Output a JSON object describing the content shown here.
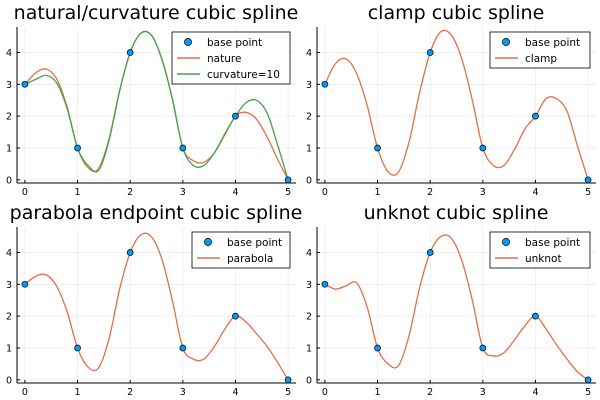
{
  "colors": {
    "base_point": "#009AF9",
    "spline": "#E26F46",
    "curvature": "#3EA44E"
  },
  "chart_data": [
    {
      "type": "line",
      "title": "natural/curvature cubic spline",
      "xlim": [
        -0.15,
        5.15
      ],
      "ylim": [
        -0.1,
        4.8
      ],
      "xticks": [
        "0",
        "1",
        "2",
        "3",
        "4",
        "5"
      ],
      "yticks": [
        "0",
        "1",
        "2",
        "3",
        "4"
      ],
      "grid": true,
      "legend_position": "top-right",
      "scatter": {
        "name": "base point",
        "x": [
          0,
          1,
          2,
          3,
          4,
          5
        ],
        "y": [
          3,
          1,
          4,
          1,
          2,
          0
        ]
      },
      "series": [
        {
          "name": "nature",
          "color_key": "spline",
          "x": [
            0,
            0.2,
            0.4,
            0.6,
            0.8,
            1.0,
            1.2,
            1.4,
            1.6,
            1.8,
            2.0,
            2.2,
            2.4,
            2.6,
            2.8,
            3.0,
            3.2,
            3.4,
            3.6,
            3.8,
            4.0,
            4.2,
            4.4,
            4.6,
            4.8,
            5.0
          ],
          "y": [
            3.0,
            3.35,
            3.48,
            3.18,
            2.3,
            1.0,
            0.38,
            0.35,
            1.3,
            2.8,
            4.0,
            4.6,
            4.55,
            3.8,
            2.55,
            1.0,
            0.6,
            0.55,
            0.85,
            1.42,
            2.0,
            2.12,
            1.9,
            1.35,
            0.65,
            0.0
          ]
        },
        {
          "name": "curvature=10",
          "color_key": "curvature",
          "x": [
            0,
            0.2,
            0.4,
            0.6,
            0.8,
            1.0,
            1.2,
            1.4,
            1.6,
            1.8,
            2.0,
            2.2,
            2.4,
            2.6,
            2.8,
            3.0,
            3.2,
            3.4,
            3.6,
            3.8,
            4.0,
            4.2,
            4.4,
            4.6,
            4.8,
            5.0
          ],
          "y": [
            3.0,
            3.15,
            3.28,
            3.05,
            2.25,
            1.0,
            0.45,
            0.3,
            1.25,
            2.8,
            4.0,
            4.6,
            4.55,
            3.8,
            2.55,
            1.0,
            0.45,
            0.45,
            0.85,
            1.45,
            2.0,
            2.42,
            2.5,
            2.1,
            1.1,
            0.0
          ]
        }
      ]
    },
    {
      "type": "line",
      "title": "clamp cubic spline",
      "xlim": [
        -0.15,
        5.15
      ],
      "ylim": [
        -0.1,
        4.8
      ],
      "xticks": [
        "0",
        "1",
        "2",
        "3",
        "4",
        "5"
      ],
      "yticks": [
        "0",
        "1",
        "2",
        "3",
        "4"
      ],
      "grid": true,
      "legend_position": "top-right",
      "scatter": {
        "name": "base point",
        "x": [
          0,
          1,
          2,
          3,
          4,
          5
        ],
        "y": [
          3,
          1,
          4,
          1,
          2,
          0
        ]
      },
      "series": [
        {
          "name": "clamp",
          "color_key": "spline",
          "x": [
            0,
            0.2,
            0.4,
            0.6,
            0.8,
            1.0,
            1.2,
            1.4,
            1.6,
            1.8,
            2.0,
            2.2,
            2.4,
            2.6,
            2.8,
            3.0,
            3.2,
            3.4,
            3.6,
            3.8,
            4.0,
            4.2,
            4.4,
            4.6,
            4.8,
            5.0
          ],
          "y": [
            3.0,
            3.65,
            3.8,
            3.35,
            2.35,
            1.0,
            0.25,
            0.25,
            1.2,
            2.75,
            4.0,
            4.65,
            4.55,
            3.8,
            2.5,
            1.0,
            0.45,
            0.45,
            0.95,
            1.6,
            2.0,
            2.55,
            2.55,
            2.15,
            1.05,
            0.0
          ]
        }
      ]
    },
    {
      "type": "line",
      "title": "parabola endpoint cubic spline",
      "xlim": [
        -0.15,
        5.15
      ],
      "ylim": [
        -0.1,
        4.8
      ],
      "xticks": [
        "0",
        "1",
        "2",
        "3",
        "4",
        "5"
      ],
      "yticks": [
        "0",
        "1",
        "2",
        "3",
        "4"
      ],
      "grid": true,
      "legend_position": "top-right",
      "scatter": {
        "name": "base point",
        "x": [
          0,
          1,
          2,
          3,
          4,
          5
        ],
        "y": [
          3,
          1,
          4,
          1,
          2,
          0
        ]
      },
      "series": [
        {
          "name": "parabola",
          "color_key": "spline",
          "x": [
            0,
            0.2,
            0.4,
            0.6,
            0.8,
            1.0,
            1.2,
            1.4,
            1.6,
            1.8,
            2.0,
            2.2,
            2.4,
            2.6,
            2.8,
            3.0,
            3.2,
            3.4,
            3.6,
            3.8,
            4.0,
            4.2,
            4.4,
            4.6,
            4.8,
            5.0
          ],
          "y": [
            3.0,
            3.25,
            3.3,
            2.95,
            2.15,
            1.0,
            0.4,
            0.38,
            1.3,
            2.85,
            4.0,
            4.55,
            4.5,
            3.8,
            2.5,
            1.0,
            0.65,
            0.65,
            1.05,
            1.6,
            2.0,
            1.82,
            1.45,
            1.05,
            0.55,
            0.0
          ]
        }
      ]
    },
    {
      "type": "line",
      "title": "unknot cubic spline",
      "xlim": [
        -0.15,
        5.15
      ],
      "ylim": [
        -0.1,
        4.8
      ],
      "xticks": [
        "0",
        "1",
        "2",
        "3",
        "4",
        "5"
      ],
      "yticks": [
        "0",
        "1",
        "2",
        "3",
        "4"
      ],
      "grid": true,
      "legend_position": "top-right",
      "scatter": {
        "name": "base point",
        "x": [
          0,
          1,
          2,
          3,
          4,
          5
        ],
        "y": [
          3,
          1,
          4,
          1,
          2,
          0
        ]
      },
      "series": [
        {
          "name": "unknot",
          "color_key": "spline",
          "x": [
            0,
            0.2,
            0.4,
            0.6,
            0.8,
            1.0,
            1.2,
            1.4,
            1.6,
            1.8,
            2.0,
            2.2,
            2.4,
            2.6,
            2.8,
            3.0,
            3.2,
            3.4,
            3.6,
            3.8,
            4.0,
            4.2,
            4.4,
            4.6,
            4.8,
            5.0
          ],
          "y": [
            3.0,
            2.85,
            2.95,
            3.05,
            2.3,
            1.0,
            0.5,
            0.45,
            1.4,
            2.9,
            4.0,
            4.5,
            4.45,
            3.75,
            2.5,
            1.0,
            0.75,
            0.85,
            1.25,
            1.7,
            2.0,
            1.6,
            1.1,
            0.65,
            0.25,
            0.0
          ]
        }
      ]
    }
  ]
}
